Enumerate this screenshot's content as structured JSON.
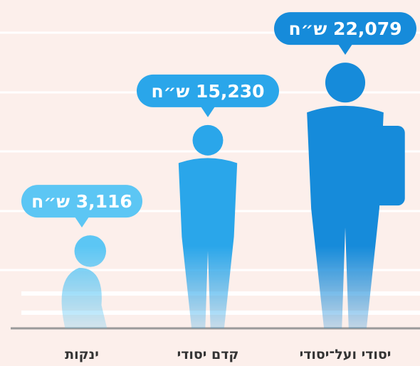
{
  "chart_data": {
    "type": "figure",
    "categories": [
      "ינקות",
      "קדם יסודי",
      "יסודי ועל־יסודי"
    ],
    "values": [
      3116,
      15230,
      22079
    ],
    "value_labels": [
      "3,116 ש״ח",
      "15,230 ש״ח",
      "22,079 ש״ח"
    ],
    "colors": [
      "#5cc6f4",
      "#2aa6ea",
      "#168bda"
    ]
  }
}
